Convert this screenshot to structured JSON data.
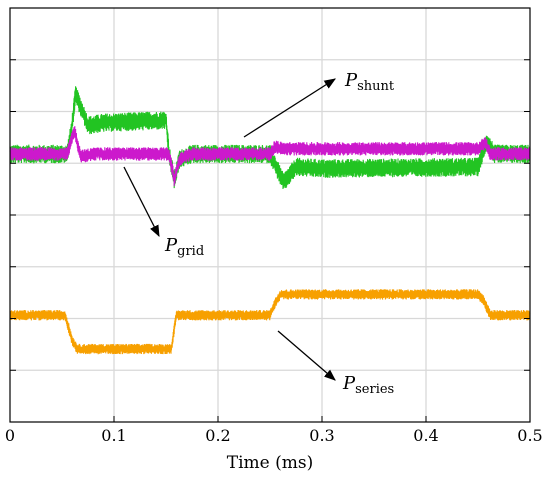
{
  "chart_data": {
    "type": "line",
    "title": "",
    "xlabel": "Time (ms)",
    "ylabel": "",
    "xlim": [
      0,
      0.5
    ],
    "xticks": [
      0,
      0.1,
      0.2,
      0.3,
      0.4,
      0.5
    ],
    "xtick_labels": [
      "0",
      "0.1",
      "0.2",
      "0.3",
      "0.4",
      "0.5"
    ],
    "y_gridlines": 8,
    "grid": true,
    "legend": "none",
    "series": [
      {
        "name": "shunt",
        "color": "#22c422",
        "times": [
          0.0,
          0.055,
          0.059,
          0.063,
          0.075,
          0.09,
          0.15,
          0.153,
          0.158,
          0.163,
          0.175,
          0.25,
          0.253,
          0.263,
          0.275,
          0.3,
          0.45,
          0.458,
          0.466,
          0.5
        ],
        "levels": [
          0.0,
          0.0,
          0.45,
          1.15,
          0.55,
          0.6,
          0.65,
          0.0,
          -0.5,
          -0.1,
          0.0,
          0.0,
          -0.12,
          -0.55,
          -0.25,
          -0.28,
          -0.25,
          0.25,
          0.0,
          0.0
        ],
        "noise": 0.18
      },
      {
        "name": "grid",
        "color": "#cc19cc",
        "times": [
          0.0,
          0.055,
          0.062,
          0.068,
          0.08,
          0.15,
          0.153,
          0.158,
          0.163,
          0.175,
          0.25,
          0.255,
          0.262,
          0.275,
          0.45,
          0.457,
          0.462,
          0.5
        ],
        "levels": [
          0.0,
          0.0,
          0.45,
          -0.05,
          0.0,
          0.0,
          0.0,
          -0.5,
          -0.1,
          0.0,
          0.0,
          0.15,
          0.1,
          0.1,
          0.1,
          0.22,
          0.0,
          0.0
        ],
        "noise": 0.13
      },
      {
        "name": "series",
        "color": "#f7a000",
        "times": [
          0.0,
          0.053,
          0.06,
          0.065,
          0.15,
          0.155,
          0.16,
          0.25,
          0.254,
          0.26,
          0.45,
          0.455,
          0.462,
          0.5
        ],
        "levels": [
          -3.1,
          -3.1,
          -3.6,
          -3.75,
          -3.75,
          -3.75,
          -3.1,
          -3.1,
          -2.9,
          -2.7,
          -2.7,
          -2.8,
          -3.1,
          -3.1
        ],
        "noise": 0.1
      }
    ],
    "annotations": [
      {
        "main": "P",
        "sub": "shunt"
      },
      {
        "main": "P",
        "sub": "grid"
      },
      {
        "main": "P",
        "sub": "series"
      }
    ]
  }
}
